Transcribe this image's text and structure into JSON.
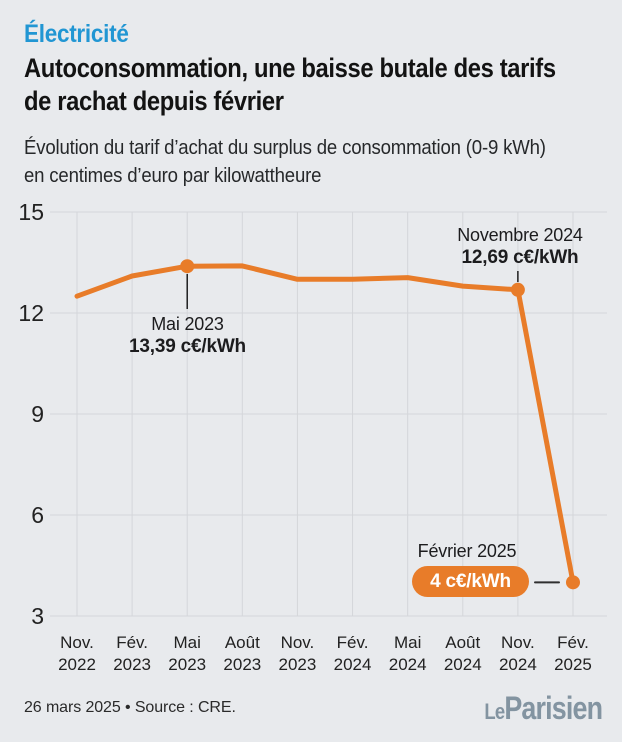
{
  "header": {
    "kicker": "Électricité",
    "title_line1": "Autoconsommation, une baisse butale des tarifs",
    "title_line2": "de rachat depuis février",
    "subtitle_line1": "Évolution du tarif d’achat du surplus de consommation (0-9 kWh)",
    "subtitle_line2": "en centimes d’euro par kilowattheure"
  },
  "chart_data": {
    "type": "line",
    "title": "Évolution du tarif d’achat du surplus de consommation (0-9 kWh) en centimes d’euro par kilowattheure",
    "unit": "c€/kWh",
    "categories": [
      "Nov. 2022",
      "Fév. 2023",
      "Mai 2023",
      "Août 2023",
      "Nov. 2023",
      "Fév. 2024",
      "Mai 2024",
      "Août 2024",
      "Nov. 2024",
      "Fév. 2025"
    ],
    "values": [
      12.5,
      13.1,
      13.39,
      13.4,
      13.0,
      13.0,
      13.05,
      12.8,
      12.69,
      4.0
    ],
    "yticks": [
      15,
      12,
      9,
      6,
      3
    ],
    "ylim": [
      3,
      15
    ],
    "grid": true,
    "legend": "none",
    "line_color": "#e87c29",
    "grid_color": "#d4d6da",
    "annotations": [
      {
        "label": "Mai 2023",
        "value_label": "13,39 c€/kWh",
        "point_index": 2,
        "style": "text"
      },
      {
        "label": "Novembre 2024",
        "value_label": "12,69 c€/kWh",
        "point_index": 8,
        "style": "text"
      },
      {
        "label": "Février 2025",
        "value_label": "4 c€/kWh",
        "point_index": 9,
        "style": "badge"
      }
    ]
  },
  "footer": {
    "note": "26 mars 2025 • Source : CRE.",
    "logo_le": "Le",
    "logo_parisien": "Parisien"
  }
}
